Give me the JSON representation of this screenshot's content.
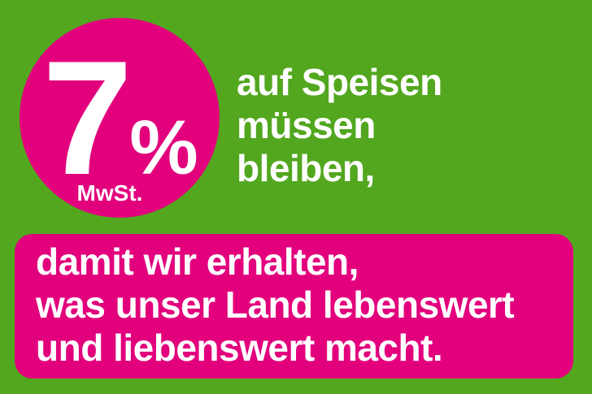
{
  "colors": {
    "background": "#52A71F",
    "accent": "#E2007D",
    "text": "#FFFFFF"
  },
  "badge": {
    "rate": "7",
    "percent": "%",
    "caption": "MwSt."
  },
  "headline": {
    "lines": [
      "auf Speisen",
      "müssen",
      "bleiben,"
    ]
  },
  "banner": {
    "lines": [
      "damit wir erhalten,",
      "was unser Land lebenswert",
      "und liebenswert macht."
    ]
  }
}
